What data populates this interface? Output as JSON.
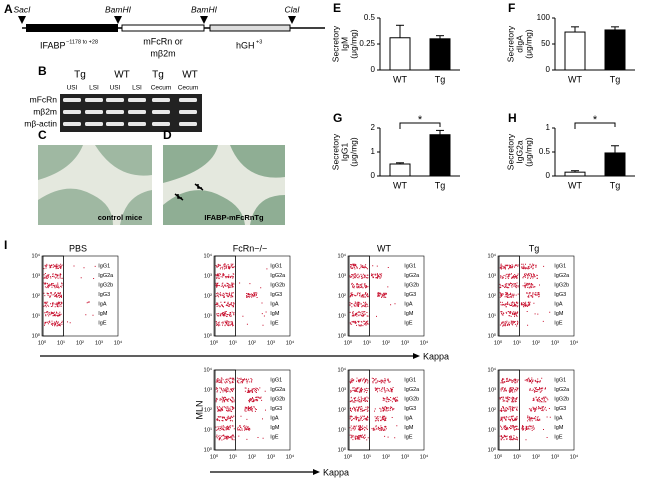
{
  "panel_a": {
    "letter": "A",
    "sites": [
      "SacI",
      "BamHI",
      "BamHI",
      "ClaI"
    ],
    "promoter": {
      "text": "IFABP",
      "sup": "−1178 to +28"
    },
    "insert": [
      "mFcRn or",
      "mβ2m"
    ],
    "tail": {
      "text": "hGH",
      "sup": "+3"
    }
  },
  "panel_b": {
    "letter": "B",
    "groups": [
      "Tg",
      "WT",
      "Tg",
      "WT"
    ],
    "lanes": [
      "USI",
      "LSI",
      "USI",
      "LSI",
      "Cecum",
      "Cecum"
    ],
    "genes": [
      "mFcRn",
      "mβ2m",
      "mβ-actin"
    ]
  },
  "panel_c": {
    "letter": "C",
    "caption": "control mice"
  },
  "panel_d": {
    "letter": "D",
    "caption": "IFABP-mFcRnTg"
  },
  "chart_data": [
    {
      "type": "bar",
      "title": "E",
      "ylabel": [
        "Secretory",
        "IgM",
        "(μg/mg)"
      ],
      "categories": [
        "WT",
        "Tg"
      ],
      "values": [
        0.31,
        0.3
      ],
      "errors": [
        0.12,
        0.03
      ],
      "colors": [
        "#ffffff",
        "#000000"
      ],
      "ylim": [
        0,
        0.5
      ],
      "yticks": [
        0,
        0.25,
        0.5
      ]
    },
    {
      "type": "bar",
      "title": "F",
      "ylabel": [
        "Secretory",
        "dIgA",
        "(μg/mg)"
      ],
      "categories": [
        "WT",
        "Tg"
      ],
      "values": [
        73,
        77
      ],
      "errors": [
        10,
        6
      ],
      "colors": [
        "#ffffff",
        "#000000"
      ],
      "ylim": [
        0,
        100
      ],
      "yticks": [
        0,
        50,
        100
      ]
    },
    {
      "type": "bar",
      "title": "G",
      "ylabel": [
        "Secretory",
        "IgG1",
        "(μg/mg)"
      ],
      "categories": [
        "WT",
        "Tg"
      ],
      "values": [
        0.5,
        1.72
      ],
      "errors": [
        0.05,
        0.18
      ],
      "colors": [
        "#ffffff",
        "#000000"
      ],
      "ylim": [
        0,
        2
      ],
      "yticks": [
        0,
        1,
        2
      ],
      "annotation": "*"
    },
    {
      "type": "bar",
      "title": "H",
      "ylabel": [
        "Secretory",
        "IgG2a",
        "(μg/mg)"
      ],
      "categories": [
        "WT",
        "Tg"
      ],
      "values": [
        0.08,
        0.48
      ],
      "errors": [
        0.03,
        0.15
      ],
      "colors": [
        "#ffffff",
        "#000000"
      ],
      "ylim": [
        0,
        1
      ],
      "yticks": [
        0,
        0.5,
        1
      ],
      "annotation": "*"
    }
  ],
  "flow": {
    "letter": "I",
    "titles": [
      "PBS",
      "FcRn−/−",
      "WT",
      "Tg"
    ],
    "row_label": "MLN",
    "axis_label": "Kappa",
    "isotypes": [
      "IgG1",
      "IgG2a",
      "IgG2b",
      "IgG3",
      "IgA",
      "IgM",
      "IgE"
    ],
    "ticks": [
      "10⁰",
      "10¹",
      "10²",
      "10³",
      "10⁴"
    ]
  }
}
